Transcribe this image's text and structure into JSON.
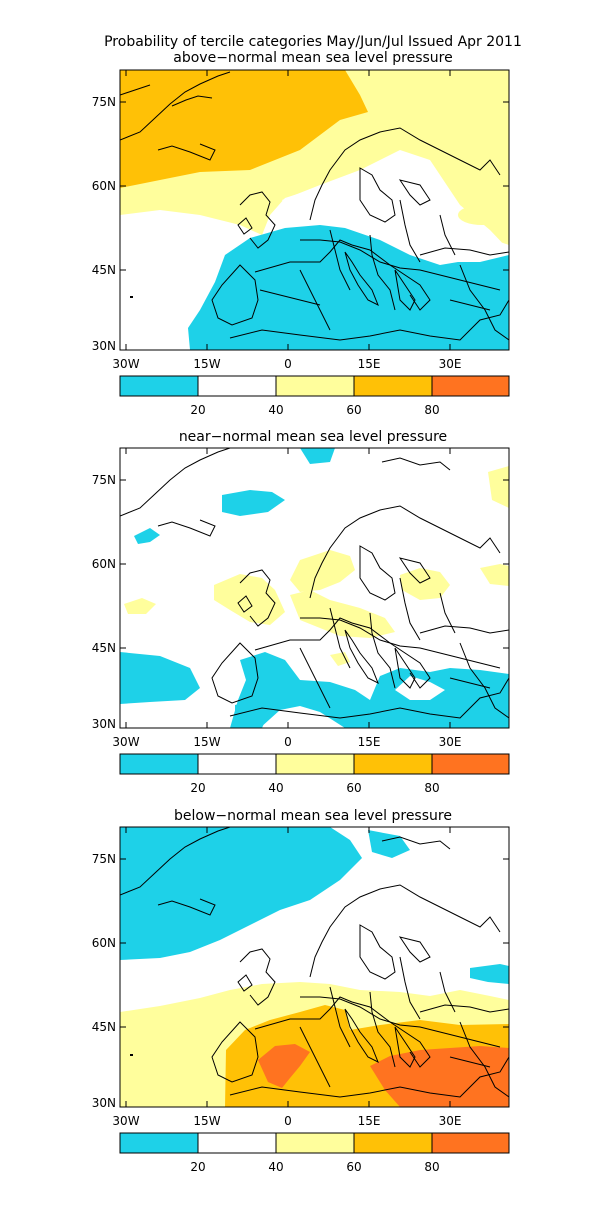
{
  "figure": {
    "title_line1": "Probability of tercile categories May/Jun/Jul Issued Apr 2011"
  },
  "colors": {
    "cyan": "#1ed1e8",
    "white": "#ffffff",
    "light_yellow": "#fffe9c",
    "gold": "#ffc106",
    "orange": "#ff7320"
  },
  "axes": {
    "x_ticks": [
      "30W",
      "15W",
      "0",
      "15E",
      "30E"
    ],
    "y_ticks": [
      "75N",
      "60N",
      "45N",
      "30N"
    ]
  },
  "colorbar": {
    "labels": [
      "20",
      "40",
      "60",
      "80"
    ]
  },
  "panels": [
    {
      "id": "above",
      "title": "above−normal mean sea level pressure"
    },
    {
      "id": "near",
      "title": "near−normal mean sea level pressure"
    },
    {
      "id": "below",
      "title": "below−normal mean sea level pressure"
    }
  ]
}
